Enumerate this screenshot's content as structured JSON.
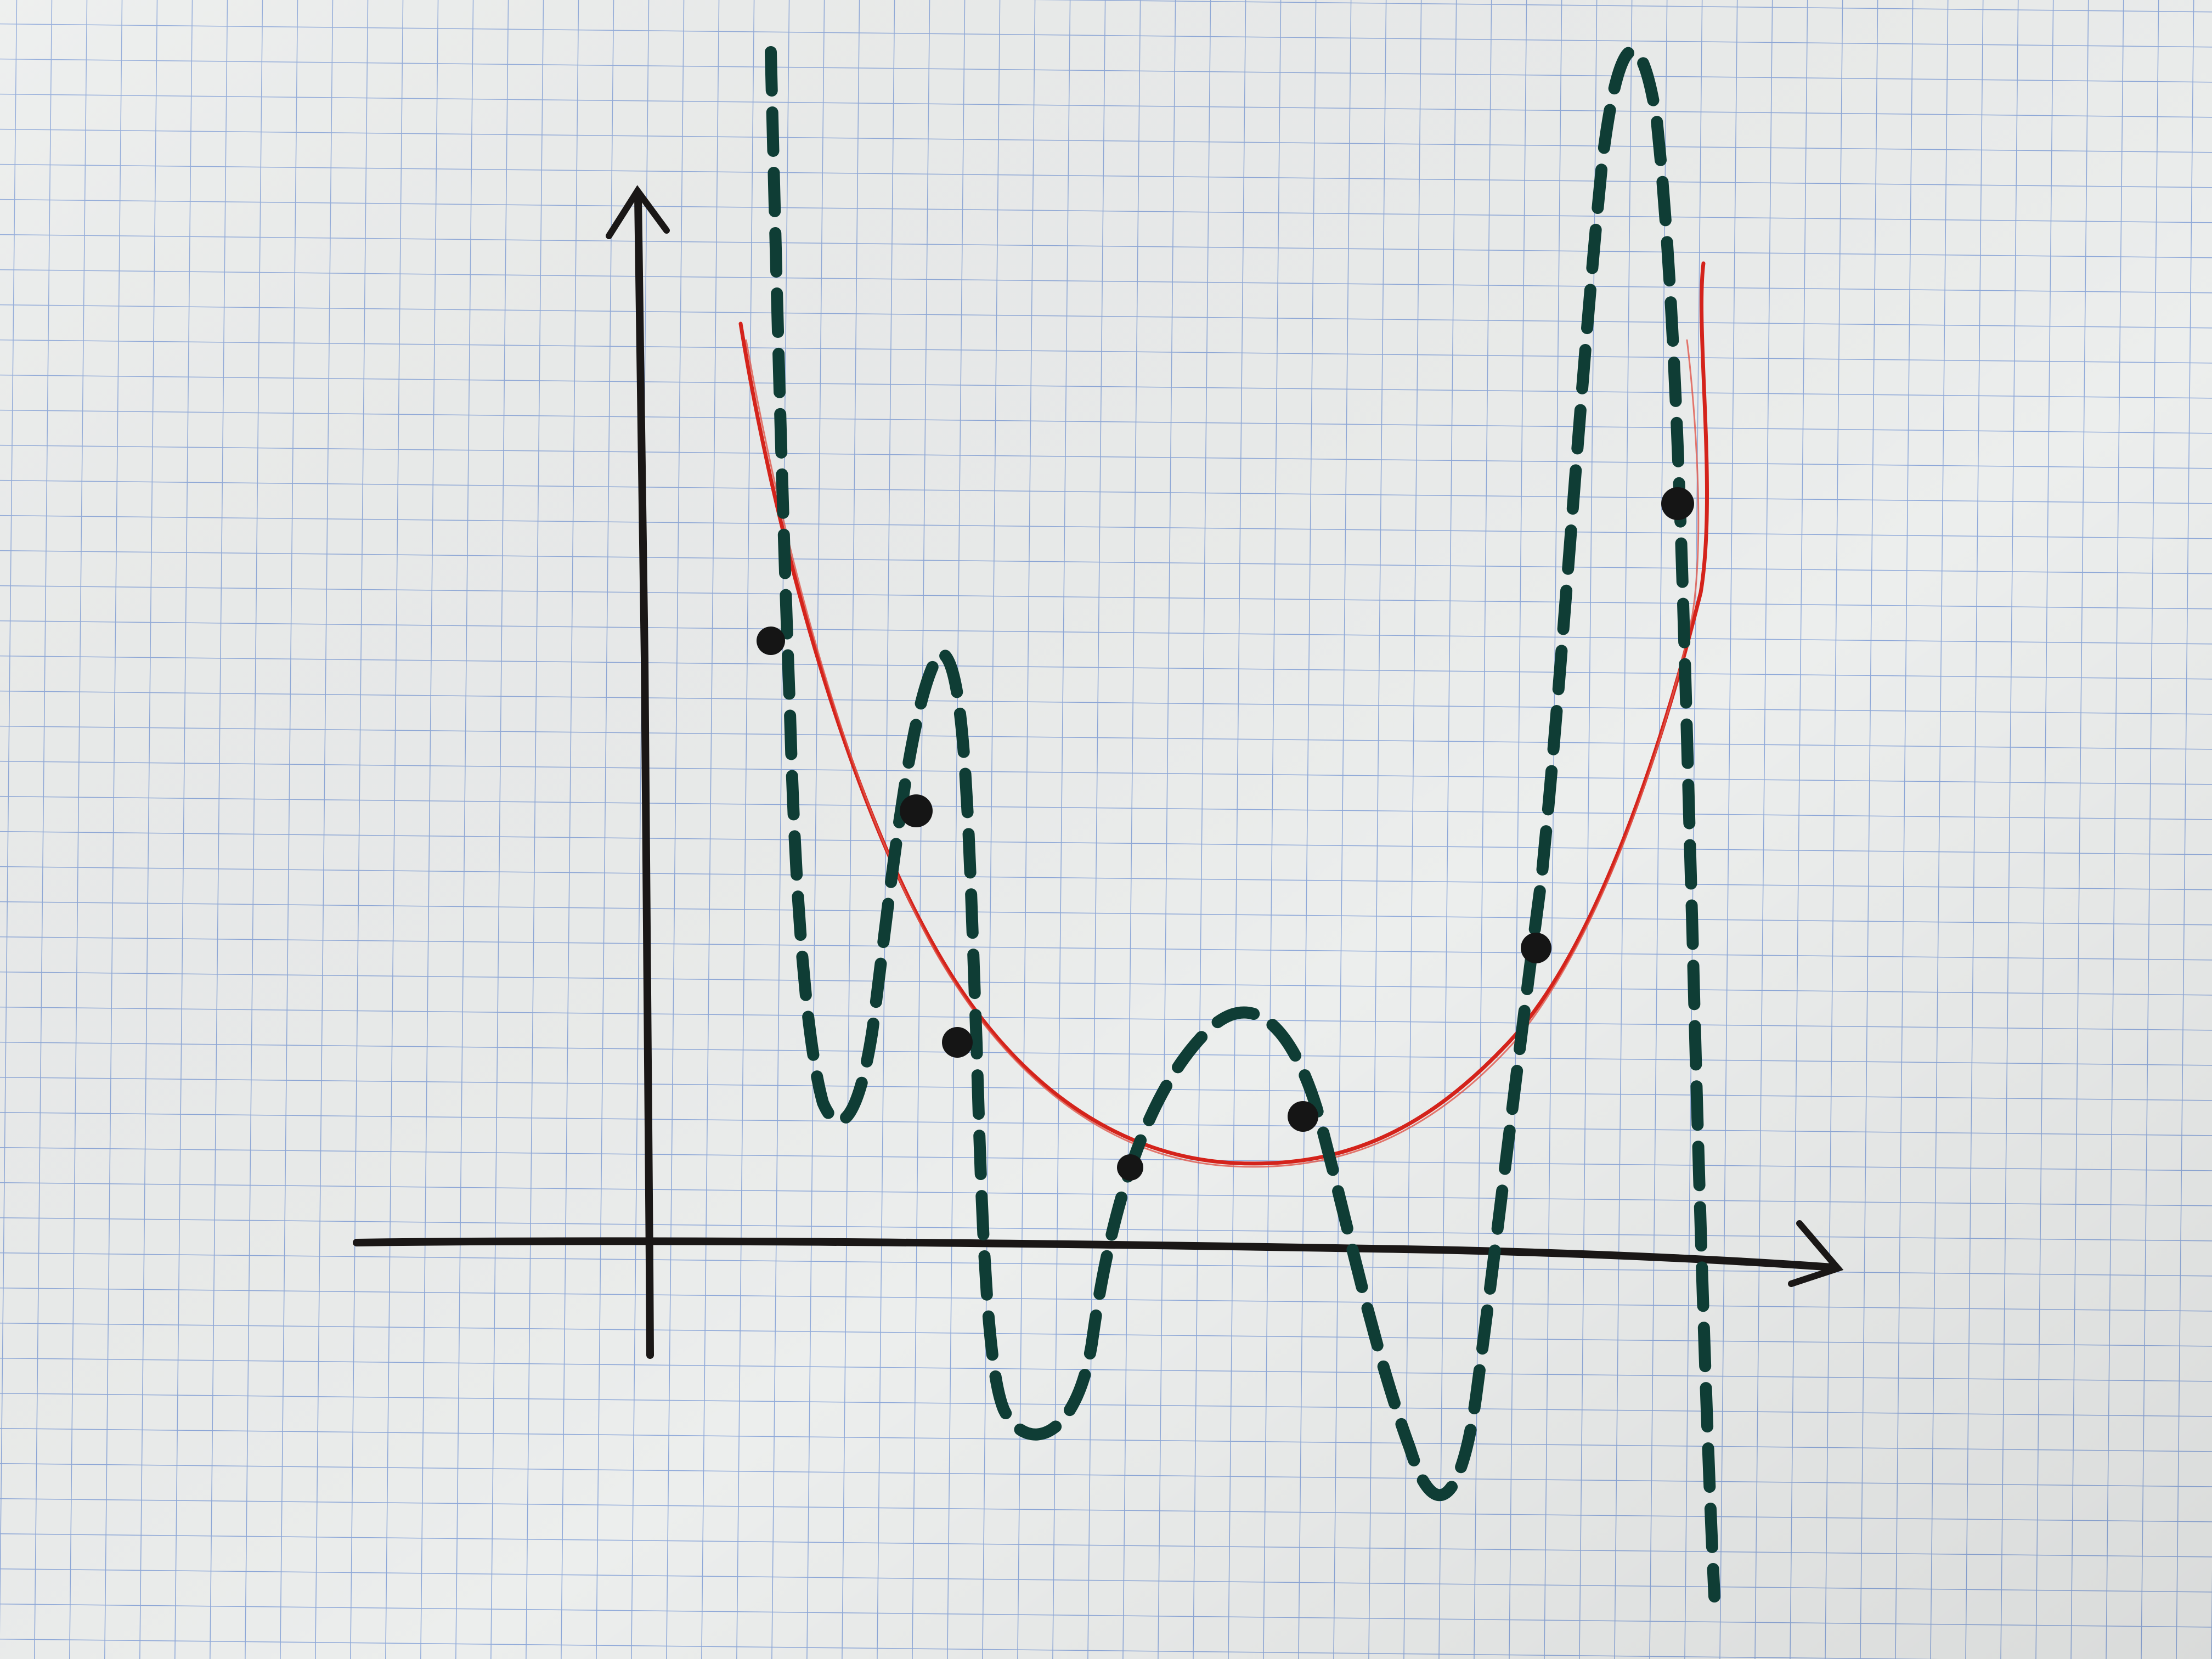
{
  "image": {
    "description_free": true,
    "paper_color": "#eceeed",
    "grid_color": "#7f9ed6",
    "ink_axes_color": "#1a1716",
    "ink_curve_color": "#0f3d35",
    "ink_fit_color": "#d4231b",
    "ink_point_color": "#151515"
  },
  "icons": {
    "x_axis_arrow": "arrow-right-icon",
    "y_axis_arrow": "arrow-up-icon"
  }
}
